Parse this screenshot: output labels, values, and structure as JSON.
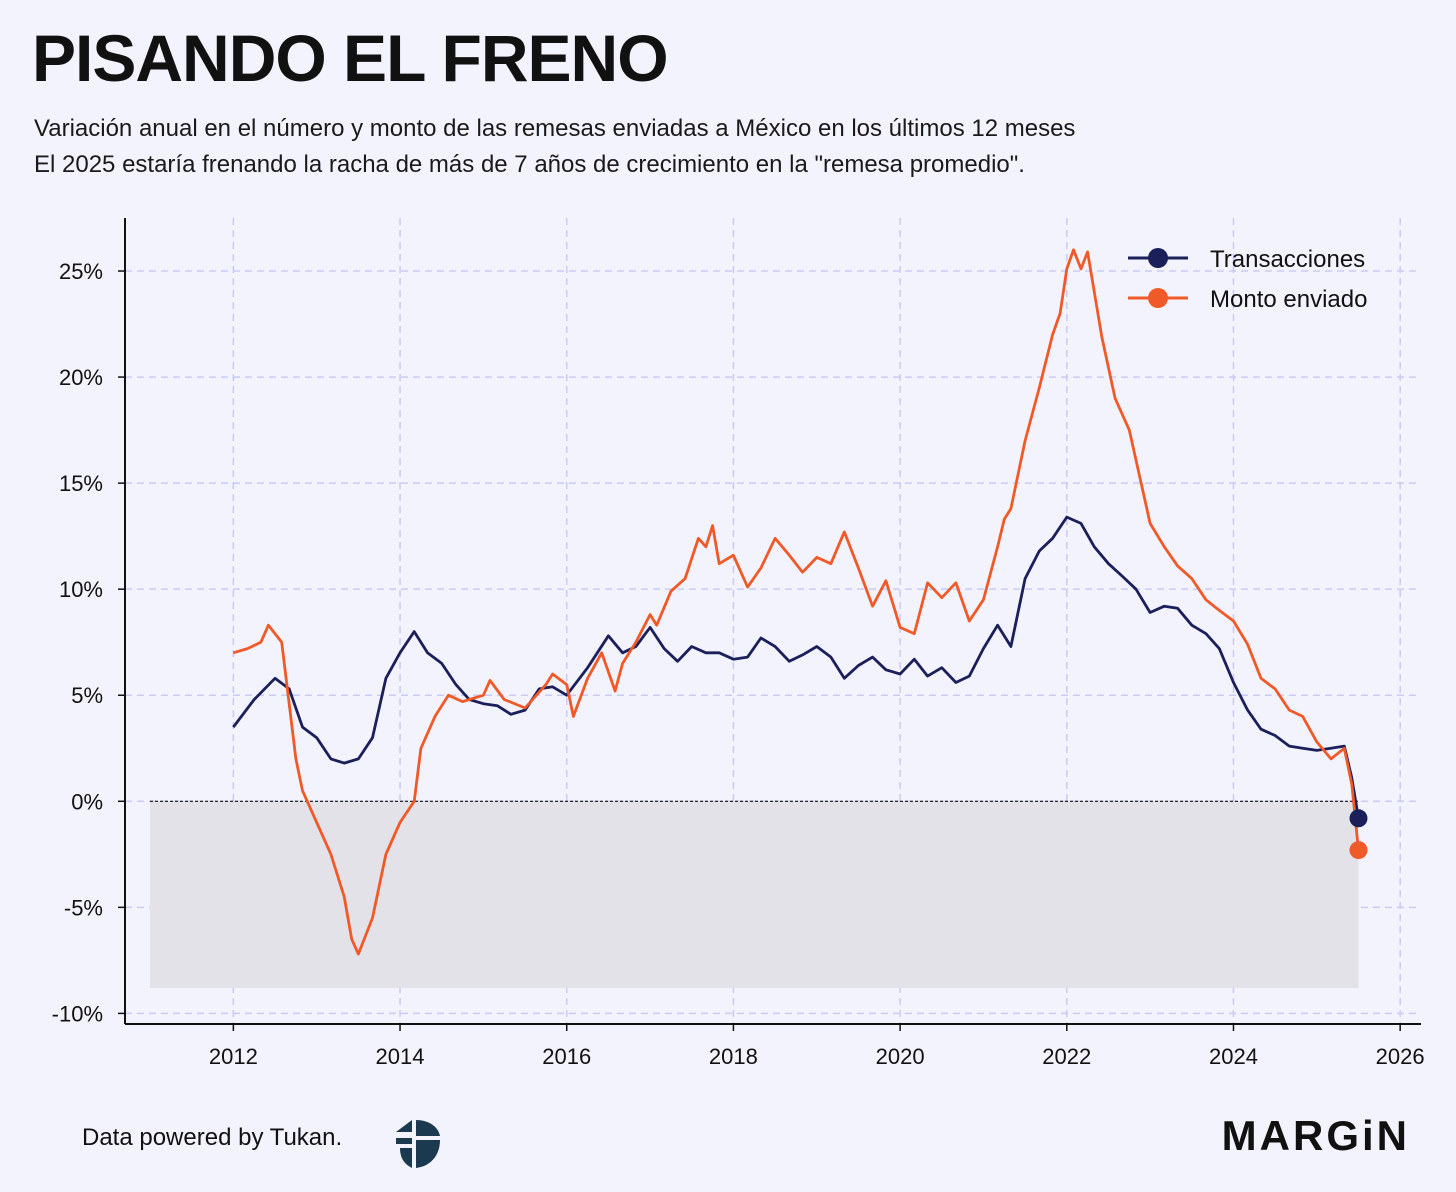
{
  "header": {
    "title": "PISANDO EL FRENO",
    "subtitle_1": "Variación anual en el número y monto de las remesas enviadas a México en los últimos 12 meses",
    "subtitle_2": "El 2025 estaría frenando la racha de más de 7 años de crecimiento en la \"remesa promedio\"."
  },
  "footer": {
    "credit": "Data powered by Tukan.",
    "brand": "MARGiN"
  },
  "colors": {
    "background": "#f3f3fd",
    "transacciones": "#1b1f5a",
    "monto": "#f05a28",
    "grid": "#c9cbf5",
    "negative_band": "#e3e2e8"
  },
  "chart_data": {
    "type": "line",
    "title": "",
    "xlabel": "",
    "ylabel": "",
    "xlim": [
      2010.7,
      2026.25
    ],
    "ylim": [
      -10.5,
      27.5
    ],
    "x_ticks": [
      2012,
      2014,
      2016,
      2018,
      2020,
      2022,
      2024,
      2026
    ],
    "x_tick_labels": [
      "2012",
      "2014",
      "2016",
      "2018",
      "2020",
      "2022",
      "2024",
      "2026"
    ],
    "y_ticks": [
      25,
      20,
      15,
      10,
      5,
      0,
      -5,
      -10
    ],
    "y_tick_labels": [
      "25%",
      "20%",
      "15%",
      "10%",
      "5%",
      "0%",
      "-5%",
      "-10%"
    ],
    "grid": true,
    "legend_position": "top-right",
    "reference_line_y": 0,
    "negative_band": {
      "x_start": 2011.0,
      "x_end": 2025.5,
      "y_start": 0,
      "y_end": -8.8
    },
    "series": [
      {
        "name": "Transacciones",
        "color": "#1b1f5a",
        "x": [
          2012.0,
          2012.25,
          2012.5,
          2012.67,
          2012.83,
          2013.0,
          2013.17,
          2013.33,
          2013.5,
          2013.67,
          2013.83,
          2014.0,
          2014.17,
          2014.33,
          2014.5,
          2014.67,
          2014.83,
          2015.0,
          2015.17,
          2015.33,
          2015.5,
          2015.67,
          2015.83,
          2016.0,
          2016.25,
          2016.5,
          2016.67,
          2016.83,
          2017.0,
          2017.17,
          2017.33,
          2017.5,
          2017.67,
          2017.83,
          2018.0,
          2018.17,
          2018.33,
          2018.5,
          2018.67,
          2018.83,
          2019.0,
          2019.17,
          2019.33,
          2019.5,
          2019.67,
          2019.83,
          2020.0,
          2020.17,
          2020.33,
          2020.5,
          2020.67,
          2020.83,
          2021.0,
          2021.17,
          2021.33,
          2021.5,
          2021.67,
          2021.83,
          2022.0,
          2022.17,
          2022.33,
          2022.5,
          2022.67,
          2022.83,
          2023.0,
          2023.17,
          2023.33,
          2023.5,
          2023.67,
          2023.83,
          2024.0,
          2024.17,
          2024.33,
          2024.5,
          2024.67,
          2024.83,
          2025.0,
          2025.17,
          2025.33,
          2025.42,
          2025.5
        ],
        "values": [
          3.5,
          4.8,
          5.8,
          5.3,
          3.5,
          3.0,
          2.0,
          1.8,
          2.0,
          3.0,
          5.8,
          7.0,
          8.0,
          7.0,
          6.5,
          5.5,
          4.8,
          4.6,
          4.5,
          4.1,
          4.3,
          5.3,
          5.4,
          5.0,
          6.3,
          7.8,
          7.0,
          7.3,
          8.2,
          7.2,
          6.6,
          7.3,
          7.0,
          7.0,
          6.7,
          6.8,
          7.7,
          7.3,
          6.6,
          6.9,
          7.3,
          6.8,
          5.8,
          6.4,
          6.8,
          6.2,
          6.0,
          6.7,
          5.9,
          6.3,
          5.6,
          5.9,
          7.2,
          8.3,
          7.3,
          10.5,
          11.8,
          12.4,
          13.4,
          13.1,
          12.0,
          11.2,
          10.6,
          10.0,
          8.9,
          9.2,
          9.1,
          8.3,
          7.9,
          7.2,
          5.6,
          4.3,
          3.4,
          3.1,
          2.6,
          2.5,
          2.4,
          2.5,
          2.6,
          1.1,
          -0.8
        ]
      },
      {
        "name": "Monto enviado",
        "color": "#f05a28",
        "x": [
          2012.0,
          2012.17,
          2012.33,
          2012.42,
          2012.58,
          2012.75,
          2012.83,
          2013.0,
          2013.17,
          2013.33,
          2013.42,
          2013.5,
          2013.67,
          2013.83,
          2014.0,
          2014.17,
          2014.25,
          2014.42,
          2014.58,
          2014.75,
          2015.0,
          2015.08,
          2015.25,
          2015.5,
          2015.75,
          2015.83,
          2016.0,
          2016.08,
          2016.25,
          2016.42,
          2016.58,
          2016.67,
          2016.83,
          2017.0,
          2017.08,
          2017.25,
          2017.42,
          2017.58,
          2017.67,
          2017.75,
          2017.83,
          2018.0,
          2018.17,
          2018.33,
          2018.5,
          2018.67,
          2018.83,
          2019.0,
          2019.17,
          2019.33,
          2019.5,
          2019.67,
          2019.83,
          2020.0,
          2020.17,
          2020.33,
          2020.5,
          2020.67,
          2020.83,
          2021.0,
          2021.17,
          2021.25,
          2021.33,
          2021.5,
          2021.67,
          2021.83,
          2021.92,
          2022.0,
          2022.08,
          2022.17,
          2022.25,
          2022.42,
          2022.58,
          2022.75,
          2022.92,
          2023.0,
          2023.17,
          2023.33,
          2023.5,
          2023.67,
          2023.83,
          2024.0,
          2024.17,
          2024.33,
          2024.5,
          2024.67,
          2024.83,
          2025.0,
          2025.17,
          2025.33,
          2025.42,
          2025.5
        ],
        "values": [
          7.0,
          7.2,
          7.5,
          8.3,
          7.5,
          2.0,
          0.5,
          -1.0,
          -2.5,
          -4.5,
          -6.5,
          -7.2,
          -5.5,
          -2.5,
          -1.0,
          0.0,
          2.5,
          4.0,
          5.0,
          4.7,
          5.0,
          5.7,
          4.8,
          4.4,
          5.5,
          6.0,
          5.5,
          4.0,
          5.8,
          7.0,
          5.2,
          6.5,
          7.5,
          8.8,
          8.3,
          9.9,
          10.5,
          12.4,
          12.0,
          13.0,
          11.2,
          11.6,
          10.1,
          11.0,
          12.4,
          11.6,
          10.8,
          11.5,
          11.2,
          12.7,
          11.0,
          9.2,
          10.4,
          8.2,
          7.9,
          10.3,
          9.6,
          10.3,
          8.5,
          9.5,
          12.0,
          13.3,
          13.8,
          17.0,
          19.5,
          22.0,
          23.0,
          25.1,
          26.0,
          25.1,
          25.9,
          21.9,
          19.0,
          17.5,
          14.5,
          13.1,
          12.0,
          11.1,
          10.5,
          9.5,
          9.0,
          8.5,
          7.4,
          5.8,
          5.3,
          4.3,
          4.0,
          2.8,
          2.0,
          2.5,
          0.8,
          -2.3
        ]
      }
    ],
    "end_markers": [
      {
        "series": "Transacciones",
        "x": 2025.5,
        "value": -0.8
      },
      {
        "series": "Monto enviado",
        "x": 2025.5,
        "value": -2.3
      }
    ]
  }
}
